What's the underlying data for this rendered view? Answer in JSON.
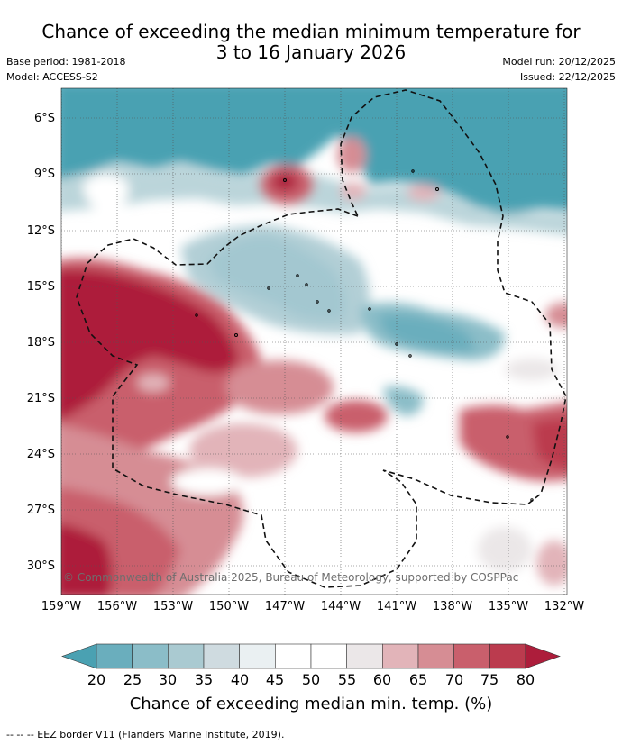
{
  "title": {
    "line1": "Chance of exceeding the median minimum temperature for",
    "line2": "3 to 16 January 2026"
  },
  "meta": {
    "base_period": "Base period: 1981-2018",
    "model": "Model: ACCESS-S2",
    "model_run": "Model run: 20/12/2025",
    "issued": "Issued: 22/12/2025"
  },
  "axes": {
    "y_ticks": [
      "6°S",
      "9°S",
      "12°S",
      "15°S",
      "18°S",
      "21°S",
      "24°S",
      "27°S",
      "30°S"
    ],
    "x_ticks": [
      "159°W",
      "156°W",
      "153°W",
      "150°W",
      "147°W",
      "144°W",
      "141°W",
      "138°W",
      "135°W",
      "132°W"
    ]
  },
  "copyright": "© Commonwealth of Australia 2025, Bureau of Meteorology, supported by COSPPac",
  "colorbar": {
    "labels": [
      "20",
      "25",
      "30",
      "35",
      "40",
      "45",
      "50",
      "55",
      "60",
      "65",
      "70",
      "75",
      "80"
    ],
    "colors": [
      "#4aa1b2",
      "#6aaebd",
      "#8bbdc8",
      "#aacad1",
      "#cfdbe0",
      "#eaf0f2",
      "#ffffff",
      "#ffffff",
      "#ebe7e8",
      "#e2b4b9",
      "#d68d94",
      "#c95f6c",
      "#bb3b4e",
      "#ad1d3b"
    ],
    "title": "Chance of exceeding median min. temp. (%)"
  },
  "footer": "--  --  -- EEZ border V11 (Flanders Marine Institute, 2019)."
}
